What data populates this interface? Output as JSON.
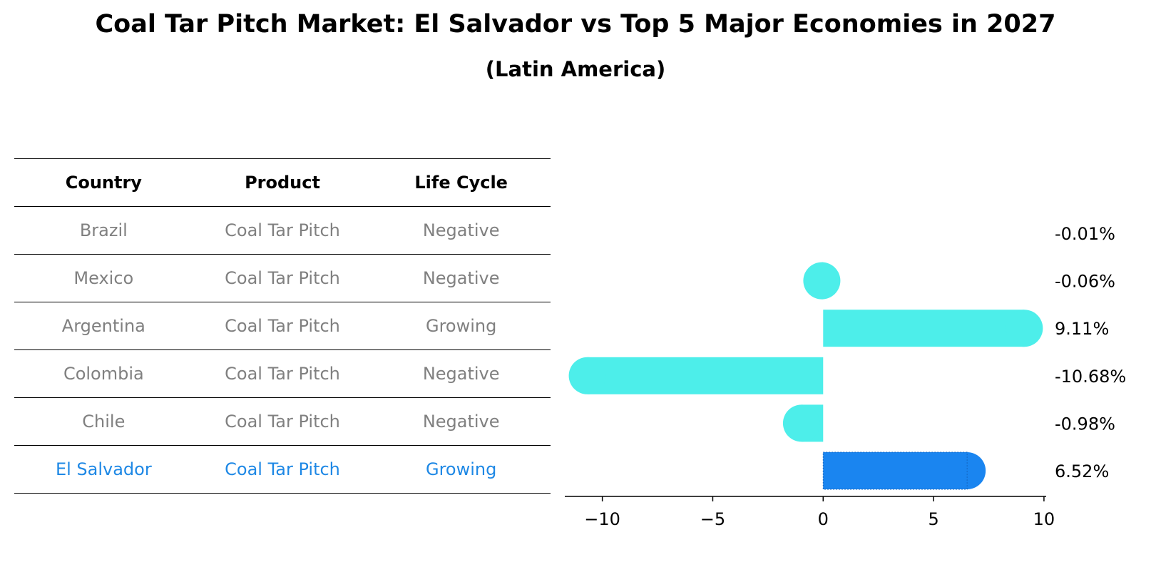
{
  "chart_data": {
    "type": "bar",
    "orientation": "horizontal",
    "title": "Coal Tar Pitch Market: El Salvador vs Top 5 Major Economies in 2027",
    "subtitle": "(Latin America)",
    "table": {
      "headers": [
        "Country",
        "Product",
        "Life Cycle"
      ],
      "rows": [
        {
          "country": "Brazil",
          "product": "Coal Tar Pitch",
          "life_cycle": "Negative"
        },
        {
          "country": "Mexico",
          "product": "Coal Tar Pitch",
          "life_cycle": "Negative"
        },
        {
          "country": "Argentina",
          "product": "Coal Tar Pitch",
          "life_cycle": "Growing"
        },
        {
          "country": "Colombia",
          "product": "Coal Tar Pitch",
          "life_cycle": "Negative"
        },
        {
          "country": "Chile",
          "product": "Coal Tar Pitch",
          "life_cycle": "Negative"
        },
        {
          "country": "El Salvador",
          "product": "Coal Tar Pitch",
          "life_cycle": "Growing"
        }
      ]
    },
    "categories": [
      "Brazil",
      "Mexico",
      "Argentina",
      "Colombia",
      "Chile",
      "El Salvador"
    ],
    "values": [
      -0.01,
      -0.06,
      9.11,
      -10.68,
      -0.98,
      6.52
    ],
    "value_labels": [
      "-0.01%",
      "-0.06%",
      "9.11%",
      "-10.68%",
      "-0.98%",
      "6.52%"
    ],
    "highlight_index": 5,
    "xlim": [
      -11.7,
      10.1
    ],
    "xticks": [
      -10,
      -5,
      0,
      5,
      10
    ],
    "xtick_labels": [
      "−10",
      "−5",
      "0",
      "5",
      "10"
    ],
    "colors": {
      "default": "#4deeea",
      "highlight": "#1a85f0",
      "highlight_text": "#1e88e5"
    }
  }
}
